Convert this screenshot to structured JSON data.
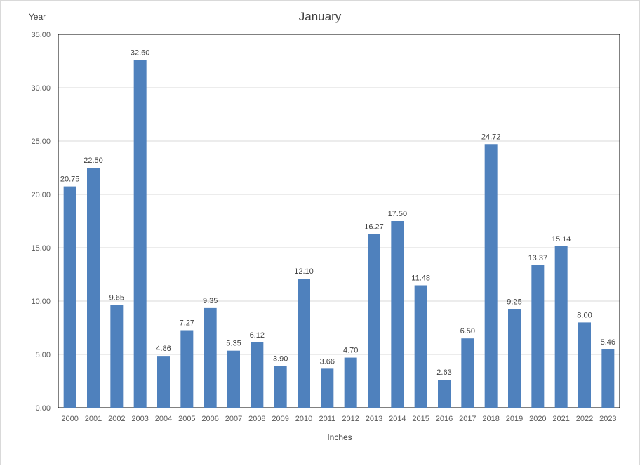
{
  "chart_data": {
    "type": "bar",
    "title": "January",
    "xlabel": "Inches",
    "ylabel": "Year",
    "categories": [
      "2000",
      "2001",
      "2002",
      "2003",
      "2004",
      "2005",
      "2006",
      "2007",
      "2008",
      "2009",
      "2010",
      "2011",
      "2012",
      "2013",
      "2014",
      "2015",
      "2016",
      "2017",
      "2018",
      "2019",
      "2020",
      "2021",
      "2022",
      "2023"
    ],
    "values": [
      20.75,
      22.5,
      9.65,
      32.6,
      4.86,
      7.27,
      9.35,
      5.35,
      6.12,
      3.9,
      12.1,
      3.66,
      4.7,
      16.27,
      17.5,
      11.48,
      2.63,
      6.5,
      24.72,
      9.25,
      13.37,
      15.14,
      8.0,
      5.46
    ],
    "data_labels": [
      "20.75",
      "22.50",
      "9.65",
      "32.60",
      "4.86",
      "7.27",
      "9.35",
      "5.35",
      "6.12",
      "3.90",
      "12.10",
      "3.66",
      "4.70",
      "16.27",
      "17.50",
      "11.48",
      "2.63",
      "6.50",
      "24.72",
      "9.25",
      "13.37",
      "15.14",
      "8.00",
      "5.46"
    ],
    "ylim": [
      0,
      35
    ],
    "yticks": [
      "0.00",
      "5.00",
      "10.00",
      "15.00",
      "20.00",
      "25.00",
      "30.00",
      "35.00"
    ],
    "grid": true,
    "bar_color": "#4f81bd",
    "legend": "none"
  }
}
